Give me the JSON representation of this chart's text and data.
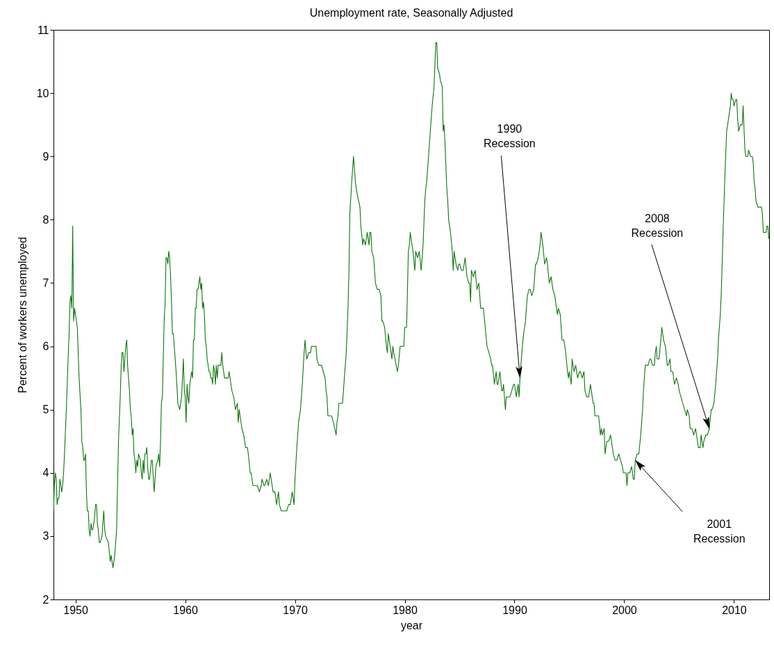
{
  "chart_data": {
    "type": "line",
    "title": "Unemployment rate, Seasonally Adjusted",
    "xlabel": "year",
    "ylabel": "Percent of workers unemployed",
    "color": "#0b770b",
    "grid": false,
    "xlim": [
      1948,
      2013.2
    ],
    "xticks": [
      1950,
      1960,
      1970,
      1980,
      1990,
      2000,
      2010
    ],
    "ylim": [
      2,
      11
    ],
    "yticks": [
      2,
      3,
      4,
      5,
      6,
      7,
      8,
      9,
      10,
      11
    ],
    "x": [
      1948,
      1948.08,
      1948.17,
      1948.25,
      1948.33,
      1948.42,
      1948.5,
      1948.58,
      1948.67,
      1948.75,
      1948.83,
      1948.92,
      1949,
      1949.17,
      1949.33,
      1949.42,
      1949.5,
      1949.58,
      1949.67,
      1949.75,
      1949.83,
      1949.92,
      1950,
      1950.17,
      1950.33,
      1950.5,
      1950.58,
      1950.67,
      1950.75,
      1950.83,
      1950.92,
      1951,
      1951.08,
      1951.17,
      1951.25,
      1951.33,
      1951.42,
      1951.5,
      1951.58,
      1951.75,
      1951.83,
      1951.92,
      1952,
      1952.08,
      1952.17,
      1952.25,
      1952.42,
      1952.58,
      1952.67,
      1952.75,
      1953,
      1953.17,
      1953.25,
      1953.42,
      1953.58,
      1953.75,
      1953.92,
      1954.08,
      1954.17,
      1954.25,
      1954.33,
      1954.42,
      1954.5,
      1954.58,
      1954.67,
      1954.75,
      1954.92,
      1955,
      1955.08,
      1955.17,
      1955.25,
      1955.33,
      1955.42,
      1955.5,
      1955.58,
      1955.67,
      1955.75,
      1955.92,
      1956,
      1956.08,
      1956.17,
      1956.25,
      1956.33,
      1956.42,
      1956.5,
      1956.58,
      1956.67,
      1956.75,
      1956.92,
      1957,
      1957.17,
      1957.33,
      1957.5,
      1957.58,
      1957.67,
      1957.75,
      1957.83,
      1957.92,
      1958.08,
      1958.17,
      1958.25,
      1958.33,
      1958.42,
      1958.5,
      1958.58,
      1958.67,
      1958.75,
      1958.83,
      1958.92,
      1959,
      1959.17,
      1959.33,
      1959.5,
      1959.58,
      1959.67,
      1959.75,
      1959.83,
      1959.92,
      1960,
      1960.08,
      1960.17,
      1960.25,
      1960.33,
      1960.42,
      1960.5,
      1960.58,
      1960.67,
      1960.75,
      1960.83,
      1960.92,
      1961,
      1961.08,
      1961.17,
      1961.25,
      1961.33,
      1961.42,
      1961.5,
      1961.58,
      1961.67,
      1961.75,
      1961.83,
      1961.92,
      1962,
      1962.17,
      1962.25,
      1962.33,
      1962.42,
      1962.5,
      1962.58,
      1962.67,
      1962.75,
      1962.83,
      1962.92,
      1963,
      1963.17,
      1963.25,
      1963.33,
      1963.42,
      1963.5,
      1963.58,
      1963.67,
      1963.75,
      1963.92,
      1964,
      1964.17,
      1964.25,
      1964.42,
      1964.58,
      1964.75,
      1964.83,
      1964.92,
      1965,
      1965.17,
      1965.33,
      1965.5,
      1965.67,
      1965.75,
      1965.92,
      1966,
      1966.17,
      1966.25,
      1966.42,
      1966.58,
      1966.75,
      1966.92,
      1967,
      1967.17,
      1967.25,
      1967.42,
      1967.58,
      1967.75,
      1967.83,
      1967.92,
      1968,
      1968.17,
      1968.33,
      1968.5,
      1968.58,
      1968.75,
      1968.92,
      1969,
      1969.25,
      1969.42,
      1969.58,
      1969.75,
      1969.92,
      1970,
      1970.17,
      1970.33,
      1970.5,
      1970.67,
      1970.83,
      1970.92,
      1971,
      1971.08,
      1971.25,
      1971.42,
      1971.5,
      1971.67,
      1971.83,
      1971.92,
      1972,
      1972.17,
      1972.33,
      1972.42,
      1972.58,
      1972.75,
      1972.83,
      1972.92,
      1973,
      1973.17,
      1973.33,
      1973.5,
      1973.75,
      1973.83,
      1973.92,
      1974,
      1974.17,
      1974.33,
      1974.5,
      1974.67,
      1974.83,
      1974.92,
      1975,
      1975.17,
      1975.33,
      1975.42,
      1975.5,
      1975.67,
      1975.92,
      1976,
      1976.17,
      1976.25,
      1976.42,
      1976.58,
      1976.75,
      1976.83,
      1976.92,
      1977,
      1977.17,
      1977.33,
      1977.5,
      1977.67,
      1977.83,
      1977.92,
      1978,
      1978.17,
      1978.33,
      1978.42,
      1978.5,
      1978.67,
      1978.83,
      1978.92,
      1979,
      1979.33,
      1979.42,
      1979.58,
      1979.75,
      1979.92,
      1980,
      1980.17,
      1980.25,
      1980.33,
      1980.42,
      1980.5,
      1980.58,
      1980.75,
      1980.92,
      1981,
      1981.17,
      1981.33,
      1981.5,
      1981.67,
      1981.83,
      1981.92,
      1982,
      1982.17,
      1982.33,
      1982.5,
      1982.67,
      1982.83,
      1982.92,
      1983,
      1983.17,
      1983.25,
      1983.42,
      1983.5,
      1983.58,
      1983.67,
      1983.83,
      1983.92,
      1984,
      1984.17,
      1984.33,
      1984.42,
      1984.5,
      1984.67,
      1984.83,
      1984.92,
      1985,
      1985.17,
      1985.33,
      1985.5,
      1985.67,
      1985.83,
      1985.92,
      1986,
      1986.08,
      1986.25,
      1986.42,
      1986.58,
      1986.75,
      1986.92,
      1987,
      1987.17,
      1987.33,
      1987.5,
      1987.67,
      1987.83,
      1987.92,
      1988,
      1988.17,
      1988.33,
      1988.42,
      1988.5,
      1988.67,
      1988.83,
      1988.92,
      1989,
      1989.17,
      1989.25,
      1989.42,
      1989.58,
      1989.75,
      1989.92,
      1990,
      1990.17,
      1990.33,
      1990.42,
      1990.5,
      1990.58,
      1990.67,
      1990.83,
      1990.92,
      1991,
      1991.17,
      1991.33,
      1991.42,
      1991.58,
      1991.75,
      1991.92,
      1992,
      1992.17,
      1992.33,
      1992.42,
      1992.58,
      1992.75,
      1992.92,
      1993,
      1993.17,
      1993.33,
      1993.5,
      1993.67,
      1993.83,
      1993.92,
      1994,
      1994.17,
      1994.33,
      1994.5,
      1994.67,
      1994.83,
      1994.92,
      1995,
      1995.17,
      1995.25,
      1995.42,
      1995.58,
      1995.75,
      1995.92,
      1996,
      1996.17,
      1996.33,
      1996.42,
      1996.58,
      1996.75,
      1996.92,
      1997,
      1997.17,
      1997.25,
      1997.33,
      1997.5,
      1997.67,
      1997.83,
      1997.92,
      1998,
      1998.17,
      1998.25,
      1998.42,
      1998.58,
      1998.75,
      1998.92,
      1999,
      1999.17,
      1999.33,
      1999.5,
      1999.67,
      1999.83,
      1999.92,
      2000,
      2000.17,
      2000.25,
      2000.33,
      2000.5,
      2000.67,
      2000.83,
      2000.92,
      2001,
      2001.17,
      2001.33,
      2001.5,
      2001.67,
      2001.75,
      2001.83,
      2001.92,
      2002,
      2002.17,
      2002.33,
      2002.42,
      2002.58,
      2002.75,
      2002.83,
      2002.92,
      2003,
      2003.17,
      2003.33,
      2003.42,
      2003.58,
      2003.75,
      2003.92,
      2004,
      2004.17,
      2004.25,
      2004.42,
      2004.58,
      2004.75,
      2004.92,
      2005,
      2005.17,
      2005.33,
      2005.5,
      2005.67,
      2005.75,
      2005.92,
      2006,
      2006.17,
      2006.33,
      2006.5,
      2006.67,
      2006.75,
      2006.92,
      2007,
      2007.17,
      2007.25,
      2007.42,
      2007.58,
      2007.75,
      2007.92,
      2008,
      2008.17,
      2008.33,
      2008.5,
      2008.58,
      2008.75,
      2008.83,
      2008.92,
      2009,
      2009.17,
      2009.33,
      2009.42,
      2009.5,
      2009.67,
      2009.75,
      2009.83,
      2009.92,
      2010,
      2010.17,
      2010.25,
      2010.33,
      2010.42,
      2010.58,
      2010.75,
      2010.83,
      2010.92,
      2011,
      2011.08,
      2011.25,
      2011.33,
      2011.5,
      2011.67,
      2011.75,
      2011.83,
      2011.92,
      2012,
      2012.17,
      2012.33,
      2012.42,
      2012.5,
      2012.58,
      2012.67,
      2012.75,
      2012.83,
      2012.92,
      2013,
      2013.08,
      2013.17
    ],
    "values": [
      3.4,
      3.8,
      4.0,
      3.9,
      3.5,
      3.6,
      3.6,
      3.9,
      3.8,
      3.7,
      3.8,
      4.0,
      4.3,
      5.0,
      5.8,
      6.2,
      6.7,
      6.8,
      6.6,
      7.9,
      6.4,
      6.6,
      6.5,
      6.3,
      5.5,
      5.0,
      4.5,
      4.4,
      4.2,
      4.2,
      4.3,
      3.7,
      3.4,
      3.4,
      3.1,
      3.0,
      3.2,
      3.1,
      3.1,
      3.3,
      3.5,
      3.5,
      3.2,
      3.1,
      2.9,
      2.9,
      3.0,
      3.4,
      3.1,
      3.0,
      2.9,
      2.6,
      2.7,
      2.5,
      2.7,
      3.1,
      4.5,
      5.2,
      5.7,
      5.9,
      5.9,
      5.6,
      5.8,
      6.0,
      6.1,
      5.7,
      5.3,
      5.0,
      4.9,
      4.6,
      4.7,
      4.3,
      4.2,
      4.0,
      4.2,
      4.1,
      4.3,
      4.2,
      4.0,
      3.9,
      4.2,
      4.0,
      4.3,
      4.3,
      4.4,
      4.1,
      3.9,
      3.9,
      4.2,
      4.2,
      3.7,
      4.1,
      4.2,
      4.3,
      4.1,
      4.5,
      5.1,
      5.2,
      6.4,
      6.7,
      7.4,
      7.4,
      7.3,
      7.5,
      7.4,
      7.1,
      6.7,
      6.2,
      6.2,
      6.0,
      5.6,
      5.1,
      5.0,
      5.1,
      5.2,
      5.5,
      5.8,
      5.3,
      5.2,
      4.8,
      5.4,
      5.2,
      5.1,
      5.4,
      5.5,
      5.6,
      5.5,
      6.1,
      6.1,
      6.6,
      6.6,
      6.9,
      6.9,
      7.0,
      7.1,
      6.9,
      7.0,
      6.6,
      6.7,
      6.5,
      6.1,
      6.0,
      5.8,
      5.6,
      5.6,
      5.5,
      5.5,
      5.4,
      5.7,
      5.6,
      5.4,
      5.7,
      5.5,
      5.7,
      5.7,
      5.7,
      5.9,
      5.7,
      5.6,
      5.5,
      5.5,
      5.5,
      5.5,
      5.6,
      5.4,
      5.3,
      5.2,
      5.0,
      5.1,
      4.8,
      5.0,
      4.9,
      4.7,
      4.6,
      4.4,
      4.4,
      4.3,
      4.0,
      4.0,
      3.8,
      3.8,
      3.8,
      3.8,
      3.7,
      3.8,
      3.9,
      3.8,
      3.8,
      3.9,
      3.8,
      4.0,
      3.9,
      3.8,
      3.7,
      3.7,
      3.5,
      3.7,
      3.5,
      3.4,
      3.4,
      3.4,
      3.4,
      3.5,
      3.5,
      3.7,
      3.5,
      3.9,
      4.4,
      4.8,
      5.0,
      5.4,
      5.9,
      6.1,
      5.9,
      5.8,
      5.9,
      5.9,
      6.0,
      6.0,
      6.0,
      6.0,
      5.8,
      5.7,
      5.7,
      5.7,
      5.6,
      5.5,
      5.3,
      5.2,
      4.9,
      4.9,
      4.9,
      4.8,
      4.6,
      4.8,
      4.9,
      5.1,
      5.1,
      5.1,
      5.5,
      5.9,
      6.6,
      7.2,
      8.1,
      8.6,
      9.0,
      8.8,
      8.6,
      8.4,
      8.2,
      7.9,
      7.6,
      7.7,
      7.6,
      7.8,
      7.6,
      7.8,
      7.8,
      7.5,
      7.4,
      7.0,
      6.9,
      6.9,
      6.8,
      6.4,
      6.4,
      6.3,
      6.0,
      5.9,
      6.2,
      6.0,
      5.8,
      6.0,
      5.9,
      5.6,
      5.7,
      6.0,
      6.0,
      6.0,
      6.3,
      6.3,
      6.9,
      7.5,
      7.6,
      7.8,
      7.7,
      7.5,
      7.2,
      7.5,
      7.4,
      7.5,
      7.2,
      7.6,
      8.3,
      8.5,
      8.6,
      9.0,
      9.4,
      9.8,
      10.1,
      10.8,
      10.8,
      10.4,
      10.3,
      10.2,
      10.1,
      9.4,
      9.5,
      9.2,
      8.5,
      8.3,
      8.0,
      7.8,
      7.5,
      7.2,
      7.5,
      7.3,
      7.2,
      7.3,
      7.3,
      7.2,
      7.2,
      7.4,
      7.1,
      7.0,
      7.0,
      6.7,
      7.2,
      7.1,
      7.2,
      6.9,
      7.0,
      6.6,
      6.6,
      6.6,
      6.3,
      6.0,
      5.9,
      5.8,
      5.7,
      5.7,
      5.4,
      5.6,
      5.4,
      5.4,
      5.6,
      5.3,
      5.3,
      5.4,
      5.0,
      5.2,
      5.2,
      5.2,
      5.3,
      5.4,
      5.4,
      5.2,
      5.4,
      5.2,
      5.5,
      5.7,
      5.9,
      6.2,
      6.3,
      6.4,
      6.8,
      6.9,
      6.9,
      6.8,
      6.9,
      7.3,
      7.3,
      7.4,
      7.6,
      7.8,
      7.6,
      7.3,
      7.4,
      7.3,
      7.0,
      7.1,
      6.9,
      6.8,
      6.6,
      6.5,
      6.6,
      6.5,
      6.1,
      6.1,
      5.9,
      5.6,
      5.5,
      5.6,
      5.4,
      5.8,
      5.6,
      5.7,
      5.5,
      5.6,
      5.6,
      5.5,
      5.6,
      5.3,
      5.2,
      5.2,
      5.4,
      5.3,
      5.1,
      5.1,
      4.9,
      4.9,
      4.9,
      4.6,
      4.7,
      4.6,
      4.7,
      4.3,
      4.5,
      4.5,
      4.6,
      4.4,
      4.3,
      4.2,
      4.2,
      4.3,
      4.2,
      4.1,
      4.0,
      4.0,
      4.0,
      3.8,
      4.0,
      4.0,
      4.1,
      3.9,
      3.9,
      4.2,
      4.3,
      4.3,
      4.6,
      5.0,
      5.3,
      5.5,
      5.7,
      5.7,
      5.7,
      5.8,
      5.8,
      5.7,
      5.7,
      5.9,
      6.0,
      5.8,
      5.8,
      6.1,
      6.3,
      6.1,
      6.0,
      5.7,
      5.7,
      5.8,
      5.6,
      5.6,
      5.4,
      5.5,
      5.4,
      5.3,
      5.2,
      5.1,
      5.0,
      4.9,
      5.0,
      4.9,
      4.7,
      4.7,
      4.6,
      4.7,
      4.5,
      4.4,
      4.4,
      4.6,
      4.4,
      4.5,
      4.6,
      4.6,
      4.7,
      5.0,
      5.0,
      5.1,
      5.4,
      5.8,
      6.1,
      6.5,
      6.8,
      7.3,
      7.8,
      8.7,
      9.4,
      9.5,
      9.6,
      9.8,
      10.0,
      9.9,
      9.9,
      9.8,
      9.9,
      9.9,
      9.6,
      9.4,
      9.5,
      9.5,
      9.8,
      9.4,
      9.1,
      9.0,
      9.0,
      9.1,
      9.0,
      9.0,
      8.9,
      8.6,
      8.5,
      8.3,
      8.2,
      8.2,
      8.2,
      8.2,
      8.1,
      7.8,
      7.8,
      7.8,
      7.8,
      7.9,
      7.9,
      7.7
    ],
    "annotations": [
      {
        "text": "1990\nRecession",
        "x": 1990.5,
        "y": 5.5
      },
      {
        "text": "2001\nRecession",
        "x": 2001,
        "y": 4.2
      },
      {
        "text": "2008\nRecession",
        "x": 2007.75,
        "y": 4.7
      }
    ]
  }
}
